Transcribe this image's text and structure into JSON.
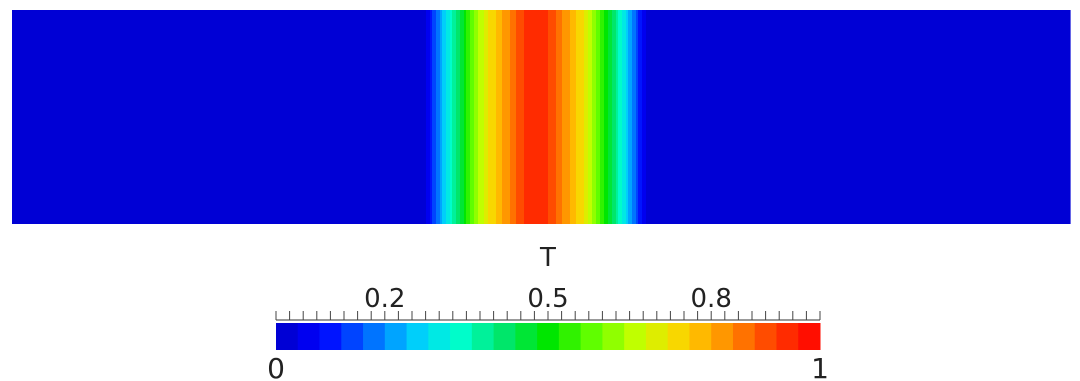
{
  "chart_data": {
    "type": "heatmap",
    "title": "",
    "scalar_name": "T",
    "range": [
      0,
      1
    ],
    "colorbar": {
      "title": "T",
      "min_label": "0",
      "max_label": "1",
      "tick_labels": [
        "0.2",
        "0.5",
        "0.8"
      ],
      "tick_values": [
        0.2,
        0.5,
        0.8
      ],
      "minor_tick_step": 0.025,
      "num_bands": 25,
      "orientation": "horizontal"
    },
    "field": {
      "description_axis": "x",
      "x": [
        0.0,
        0.39,
        0.4,
        0.41,
        0.42,
        0.43,
        0.44,
        0.45,
        0.46,
        0.47,
        0.48,
        0.49,
        0.5,
        0.51,
        0.52,
        0.53,
        0.54,
        0.55,
        0.56,
        0.57,
        0.58,
        0.59,
        0.6,
        0.61,
        1.0
      ],
      "T": [
        0.0,
        0.02,
        0.15,
        0.28,
        0.4,
        0.52,
        0.63,
        0.72,
        0.78,
        0.84,
        0.9,
        0.95,
        0.95,
        0.9,
        0.84,
        0.78,
        0.72,
        0.63,
        0.52,
        0.4,
        0.28,
        0.15,
        0.02,
        0.0,
        0.0
      ]
    },
    "colormap": [
      "#0000c8",
      "#0000ff",
      "#0064ff",
      "#00c8ff",
      "#00ffd2",
      "#00e66e",
      "#00e600",
      "#64ff00",
      "#c8ff00",
      "#ffd200",
      "#ff8c00",
      "#ff3c00",
      "#ff0000"
    ]
  }
}
